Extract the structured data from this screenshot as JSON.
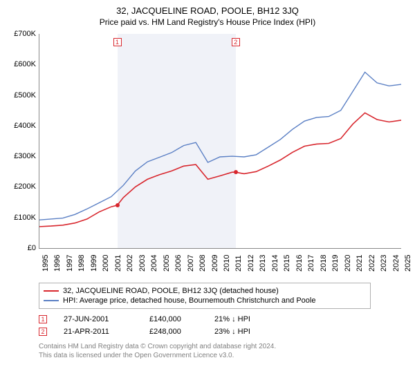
{
  "title": "32, JACQUELINE ROAD, POOLE, BH12 3JQ",
  "subtitle": "Price paid vs. HM Land Registry's House Price Index (HPI)",
  "chart": {
    "type": "line",
    "background_color": "#ffffff",
    "band_color": "rgba(200,210,230,0.28)",
    "axis_color": "#888888",
    "ylim": [
      0,
      700000
    ],
    "yticks": [
      0,
      100000,
      200000,
      300000,
      400000,
      500000,
      600000,
      700000
    ],
    "ytick_labels": [
      "£0",
      "£100K",
      "£200K",
      "£300K",
      "£400K",
      "£500K",
      "£600K",
      "£700K"
    ],
    "xlim": [
      1995,
      2025
    ],
    "xticks": [
      1995,
      1996,
      1997,
      1998,
      1999,
      2000,
      2001,
      2002,
      2003,
      2004,
      2005,
      2006,
      2007,
      2008,
      2009,
      2010,
      2011,
      2012,
      2013,
      2014,
      2015,
      2016,
      2017,
      2018,
      2019,
      2020,
      2021,
      2022,
      2023,
      2024,
      2025
    ],
    "bands": [
      {
        "start": 2001.5,
        "end": 2011.3
      }
    ],
    "series": [
      {
        "name": "price_paid",
        "color": "#d8262d",
        "width": 1.6,
        "points_x": [
          1995,
          1996,
          1997,
          1998,
          1999,
          2000,
          2001,
          2001.5,
          2002,
          2003,
          2004,
          2005,
          2006,
          2007,
          2008,
          2009,
          2010,
          2011,
          2011.3,
          2012,
          2013,
          2014,
          2015,
          2016,
          2017,
          2018,
          2019,
          2020,
          2021,
          2022,
          2023,
          2024,
          2025
        ],
        "points_y": [
          70000,
          72000,
          75000,
          82000,
          95000,
          118000,
          135000,
          140000,
          165000,
          200000,
          225000,
          240000,
          252000,
          268000,
          273000,
          225000,
          236000,
          248000,
          248000,
          243000,
          250000,
          268000,
          288000,
          313000,
          333000,
          340000,
          342000,
          358000,
          405000,
          442000,
          420000,
          412000,
          418000
        ]
      },
      {
        "name": "hpi",
        "color": "#5a7fc4",
        "width": 1.4,
        "points_x": [
          1995,
          1996,
          1997,
          1998,
          1999,
          2000,
          2001,
          2002,
          2003,
          2004,
          2005,
          2006,
          2007,
          2008,
          2009,
          2010,
          2011,
          2012,
          2013,
          2014,
          2015,
          2016,
          2017,
          2018,
          2019,
          2020,
          2021,
          2022,
          2023,
          2024,
          2025
        ],
        "points_y": [
          92000,
          95000,
          98000,
          110000,
          128000,
          148000,
          168000,
          205000,
          252000,
          282000,
          297000,
          312000,
          335000,
          345000,
          280000,
          298000,
          300000,
          298000,
          305000,
          330000,
          355000,
          388000,
          415000,
          427000,
          430000,
          450000,
          512000,
          575000,
          540000,
          530000,
          535000
        ]
      }
    ],
    "sale_points": [
      {
        "label": "1",
        "x": 2001.5,
        "y": 140000
      },
      {
        "label": "2",
        "x": 2011.3,
        "y": 248000
      }
    ]
  },
  "legend": {
    "items": [
      {
        "color": "#d8262d",
        "label": "32, JACQUELINE ROAD, POOLE, BH12 3JQ (detached house)"
      },
      {
        "color": "#5a7fc4",
        "label": "HPI: Average price, detached house, Bournemouth Christchurch and Poole"
      }
    ]
  },
  "sales": [
    {
      "marker": "1",
      "date": "27-JUN-2001",
      "price": "£140,000",
      "delta": "21% ↓ HPI"
    },
    {
      "marker": "2",
      "date": "21-APR-2011",
      "price": "£248,000",
      "delta": "23% ↓ HPI"
    }
  ],
  "footnote_line1": "Contains HM Land Registry data © Crown copyright and database right 2024.",
  "footnote_line2": "This data is licensed under the Open Government Licence v3.0."
}
